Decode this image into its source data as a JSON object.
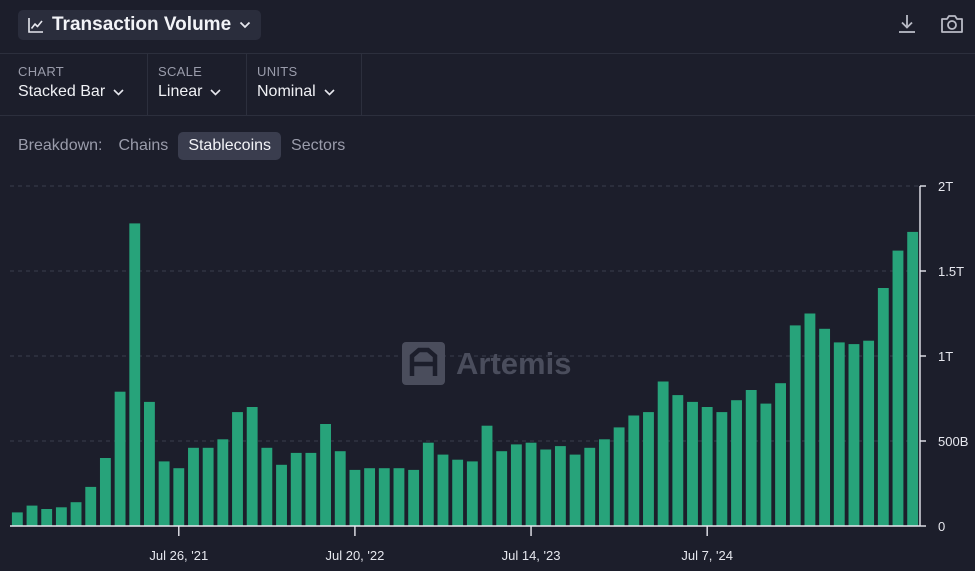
{
  "header": {
    "title": "Transaction Volume",
    "icons": [
      "chart-line-icon",
      "chevron-down-icon",
      "download-icon",
      "camera-icon"
    ]
  },
  "controls": [
    {
      "label": "CHART",
      "value": "Stacked Bar"
    },
    {
      "label": "SCALE",
      "value": "Linear"
    },
    {
      "label": "UNITS",
      "value": "Nominal"
    }
  ],
  "breakdown": {
    "label": "Breakdown:",
    "options": [
      "Chains",
      "Stablecoins",
      "Sectors"
    ],
    "active": "Stablecoins"
  },
  "watermark": "Artemis",
  "colors": {
    "bar": "#27a37a",
    "background": "#1c1e2b"
  },
  "chart_data": {
    "type": "bar",
    "stacked": true,
    "ylim": [
      0,
      2000
    ],
    "y_unit": "B",
    "yticks": [
      {
        "value": 0,
        "label": "0"
      },
      {
        "value": 500,
        "label": "500B"
      },
      {
        "value": 1000,
        "label": "1T"
      },
      {
        "value": 1500,
        "label": "1.5T"
      },
      {
        "value": 2000,
        "label": "2T"
      }
    ],
    "xticks": [
      {
        "index": 11,
        "label": "Jul 26, '21"
      },
      {
        "index": 23,
        "label": "Jul 20, '22"
      },
      {
        "index": 35,
        "label": "Jul 14, '23"
      },
      {
        "index": 47,
        "label": "Jul 7, '24"
      }
    ],
    "grid": true,
    "legend": "none",
    "values": [
      80,
      120,
      100,
      110,
      140,
      230,
      400,
      790,
      1780,
      730,
      380,
      340,
      460,
      460,
      510,
      670,
      700,
      460,
      360,
      430,
      430,
      600,
      440,
      330,
      340,
      340,
      340,
      330,
      490,
      420,
      390,
      380,
      590,
      440,
      480,
      490,
      450,
      470,
      420,
      460,
      510,
      580,
      650,
      670,
      850,
      770,
      730,
      700,
      670,
      740,
      800,
      720,
      840,
      1180,
      1250,
      1160,
      1080,
      1070,
      1090,
      1400,
      1620,
      1730
    ]
  }
}
